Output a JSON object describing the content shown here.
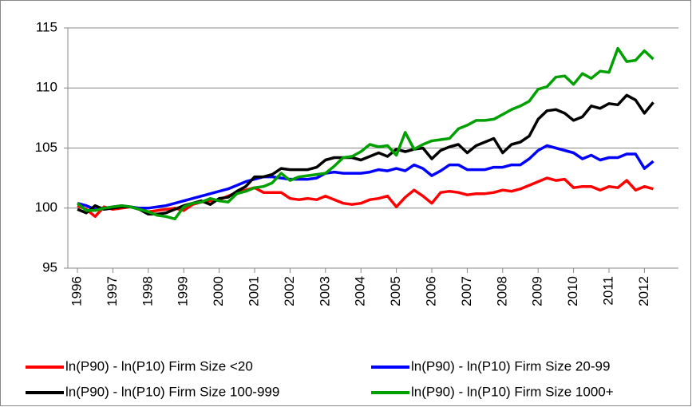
{
  "chart_data": {
    "type": "line",
    "categories": [
      "1996",
      null,
      null,
      null,
      "1997",
      null,
      null,
      null,
      "1998",
      null,
      null,
      null,
      "1999",
      null,
      null,
      null,
      "2000",
      null,
      null,
      null,
      "2001",
      null,
      null,
      null,
      "2002",
      null,
      null,
      null,
      "2003",
      null,
      null,
      null,
      "2004",
      null,
      null,
      null,
      "2005",
      null,
      null,
      null,
      "2006",
      null,
      null,
      null,
      "2007",
      null,
      null,
      null,
      "2008",
      null,
      null,
      null,
      "2009",
      null,
      null,
      null,
      "2010",
      null,
      null,
      null,
      "2011",
      null,
      null,
      null,
      "2012",
      null
    ],
    "series": [
      {
        "name": "ln(P90) - ln(P10) Firm Size <20",
        "color": "#ff0000",
        "values": [
          100.2,
          99.9,
          99.3,
          100.1,
          99.9,
          100.0,
          100.1,
          99.9,
          99.7,
          99.8,
          99.9,
          100.0,
          99.8,
          100.3,
          100.5,
          100.6,
          100.7,
          101.0,
          101.3,
          101.5,
          101.7,
          101.3,
          101.3,
          101.3,
          100.8,
          100.7,
          100.8,
          100.7,
          101.0,
          100.7,
          100.4,
          100.3,
          100.4,
          100.7,
          100.8,
          101.0,
          100.1,
          100.9,
          101.5,
          101.0,
          100.4,
          101.3,
          101.4,
          101.3,
          101.1,
          101.2,
          101.2,
          101.3,
          101.5,
          101.4,
          101.6,
          101.9,
          102.2,
          102.5,
          102.3,
          102.4,
          101.7,
          101.8,
          101.8,
          101.5,
          101.8,
          101.7,
          102.3,
          101.5,
          101.8,
          101.6
        ]
      },
      {
        "name": "ln(P90) - ln(P10) Firm Size 20-99",
        "color": "#0000ff",
        "values": [
          100.4,
          100.2,
          99.9,
          100.0,
          100.1,
          100.2,
          100.1,
          100.0,
          100.0,
          100.1,
          100.2,
          100.4,
          100.6,
          100.8,
          101.0,
          101.2,
          101.4,
          101.6,
          101.9,
          102.2,
          102.4,
          102.6,
          102.6,
          102.5,
          102.4,
          102.4,
          102.4,
          102.5,
          102.9,
          103.0,
          102.9,
          102.9,
          102.9,
          103.0,
          103.2,
          103.1,
          103.3,
          103.1,
          103.6,
          103.3,
          102.7,
          103.1,
          103.6,
          103.6,
          103.2,
          103.2,
          103.2,
          103.4,
          103.4,
          103.6,
          103.6,
          104.1,
          104.8,
          105.2,
          105.0,
          104.8,
          104.6,
          104.1,
          104.4,
          104.0,
          104.2,
          104.2,
          104.5,
          104.5,
          103.3,
          103.9
        ]
      },
      {
        "name": "ln(P90) - ln(P10) Firm Size 100-999",
        "color": "#000000",
        "values": [
          99.9,
          99.6,
          100.2,
          99.9,
          100.0,
          100.1,
          100.1,
          99.9,
          99.5,
          99.5,
          99.6,
          99.9,
          100.2,
          100.4,
          100.6,
          100.3,
          100.8,
          100.9,
          101.4,
          101.8,
          102.6,
          102.6,
          102.8,
          103.3,
          103.2,
          103.2,
          103.2,
          103.4,
          104.0,
          104.2,
          104.2,
          104.2,
          104.0,
          104.3,
          104.6,
          104.3,
          104.9,
          104.7,
          104.9,
          105.0,
          104.1,
          104.8,
          105.1,
          105.3,
          104.6,
          105.2,
          105.5,
          105.8,
          104.6,
          105.3,
          105.5,
          106.0,
          107.4,
          108.1,
          108.2,
          107.9,
          107.3,
          107.6,
          108.5,
          108.3,
          108.7,
          108.6,
          109.4,
          109.0,
          107.9,
          108.8
        ]
      },
      {
        "name": "ln(P90) - ln(P10) Firm Size 1000+",
        "color": "#00a000",
        "values": [
          100.4,
          99.8,
          99.8,
          100.0,
          100.1,
          100.2,
          100.1,
          99.9,
          99.7,
          99.4,
          99.3,
          99.1,
          100.1,
          100.4,
          100.5,
          100.8,
          100.6,
          100.5,
          101.2,
          101.4,
          101.7,
          101.8,
          102.1,
          102.9,
          102.3,
          102.6,
          102.7,
          102.8,
          102.9,
          103.5,
          104.2,
          104.3,
          104.7,
          105.3,
          105.1,
          105.2,
          104.4,
          106.3,
          104.9,
          105.3,
          105.6,
          105.7,
          105.8,
          106.6,
          106.9,
          107.3,
          107.3,
          107.4,
          107.8,
          108.2,
          108.5,
          108.9,
          109.9,
          110.1,
          110.9,
          111.0,
          110.3,
          111.2,
          110.8,
          111.4,
          111.3,
          113.3,
          112.2,
          112.3,
          113.1,
          112.4
        ]
      }
    ],
    "ylim": [
      95,
      115
    ],
    "yticks": [
      95,
      100,
      105,
      110,
      115
    ],
    "grid": true
  }
}
